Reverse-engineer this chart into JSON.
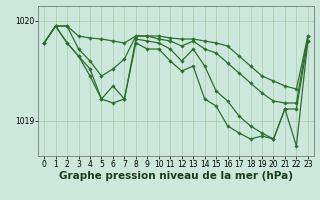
{
  "background_color": "#cce8dc",
  "plot_bg_color": "#cce8dc",
  "line_color": "#2d6e2d",
  "grid_color": "#aacaaa",
  "xlabel": "Graphe pression niveau de la mer (hPa)",
  "xlabel_fontsize": 7.5,
  "tick_fontsize": 5.5,
  "ylim": [
    1018.65,
    1020.15
  ],
  "xlim": [
    -0.5,
    23.5
  ],
  "yticks": [
    1019,
    1020
  ],
  "xticks": [
    0,
    1,
    2,
    3,
    4,
    5,
    6,
    7,
    8,
    9,
    10,
    11,
    12,
    13,
    14,
    15,
    16,
    17,
    18,
    19,
    20,
    21,
    22,
    23
  ],
  "series": [
    {
      "x": [
        0,
        1,
        2,
        3,
        4,
        5,
        6,
        7,
        8,
        9,
        10,
        11,
        12,
        13,
        14,
        15,
        16,
        17,
        18,
        19,
        20,
        21,
        22,
        23
      ],
      "y": [
        1019.78,
        1019.95,
        1019.95,
        1019.85,
        1019.83,
        1019.82,
        1019.8,
        1019.78,
        1019.85,
        1019.85,
        1019.85,
        1019.83,
        1019.82,
        1019.82,
        1019.8,
        1019.78,
        1019.75,
        1019.65,
        1019.55,
        1019.45,
        1019.4,
        1019.35,
        1019.32,
        1019.85
      ]
    },
    {
      "x": [
        0,
        1,
        2,
        3,
        4,
        5,
        6,
        7,
        8,
        9,
        10,
        11,
        12,
        13,
        14,
        15,
        16,
        17,
        18,
        19,
        20,
        21,
        22,
        23
      ],
      "y": [
        1019.78,
        1019.95,
        1019.95,
        1019.72,
        1019.6,
        1019.45,
        1019.52,
        1019.62,
        1019.85,
        1019.85,
        1019.82,
        1019.8,
        1019.75,
        1019.8,
        1019.72,
        1019.68,
        1019.58,
        1019.48,
        1019.38,
        1019.28,
        1019.2,
        1019.18,
        1019.18,
        1019.85
      ]
    },
    {
      "x": [
        0,
        1,
        2,
        3,
        4,
        5,
        6,
        7,
        8,
        9,
        10,
        11,
        12,
        13,
        14,
        15,
        16,
        17,
        18,
        19,
        20,
        21,
        22,
        23
      ],
      "y": [
        1019.78,
        1019.95,
        1019.78,
        1019.65,
        1019.52,
        1019.22,
        1019.35,
        1019.22,
        1019.82,
        1019.8,
        1019.78,
        1019.72,
        1019.6,
        1019.72,
        1019.55,
        1019.3,
        1019.2,
        1019.05,
        1018.95,
        1018.88,
        1018.82,
        1019.12,
        1019.12,
        1019.8
      ]
    },
    {
      "x": [
        0,
        1,
        2,
        3,
        4,
        5,
        6,
        7,
        8,
        9,
        10,
        11,
        12,
        13,
        14,
        15,
        16,
        17,
        18,
        19,
        20,
        21,
        22,
        23
      ],
      "y": [
        1019.78,
        1019.95,
        1019.78,
        1019.65,
        1019.45,
        1019.22,
        1019.18,
        1019.22,
        1019.78,
        1019.72,
        1019.72,
        1019.6,
        1019.5,
        1019.55,
        1019.22,
        1019.15,
        1018.95,
        1018.88,
        1018.82,
        1018.85,
        1018.82,
        1019.12,
        1018.75,
        1019.8
      ]
    }
  ]
}
